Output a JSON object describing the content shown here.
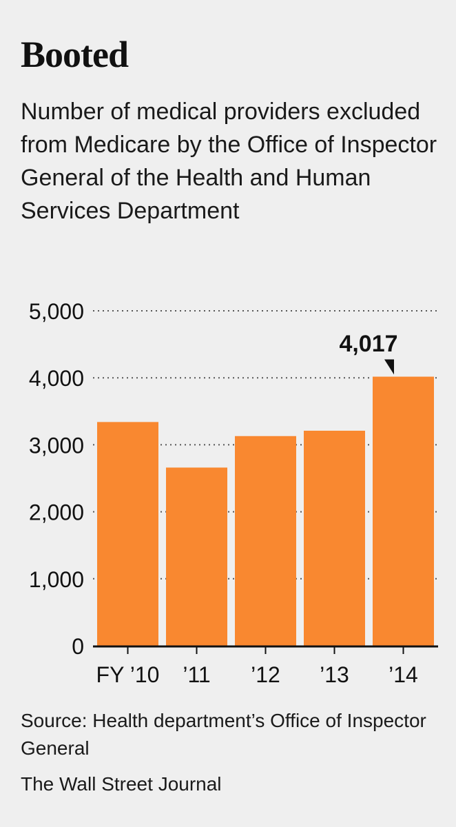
{
  "title": "Booted",
  "subtitle": "Number of medical providers excluded from Medicare by the Office of Inspector General of the Health and Human Services Department",
  "source": "Source: Health department’s Office of Inspector General",
  "credit": "The Wall Street Journal",
  "colors": {
    "bar": "#f98830",
    "grid": "#555555",
    "text": "#111111",
    "background": "#efefef"
  },
  "chart_data": {
    "type": "bar",
    "categories": [
      "FY ’10",
      "’11",
      "’12",
      "’13",
      "’14"
    ],
    "values": [
      3340,
      2660,
      3130,
      3210,
      4017
    ],
    "ylim": [
      0,
      5000
    ],
    "yticks": [
      0,
      1000,
      2000,
      3000,
      4000,
      5000
    ],
    "ytick_labels": [
      "0",
      "1,000",
      "2,000",
      "3,000",
      "4,000",
      "5,000"
    ],
    "grid": true,
    "annotation": {
      "category": "’14",
      "label": "4,017"
    },
    "title": "Booted",
    "xlabel": "",
    "ylabel": ""
  }
}
